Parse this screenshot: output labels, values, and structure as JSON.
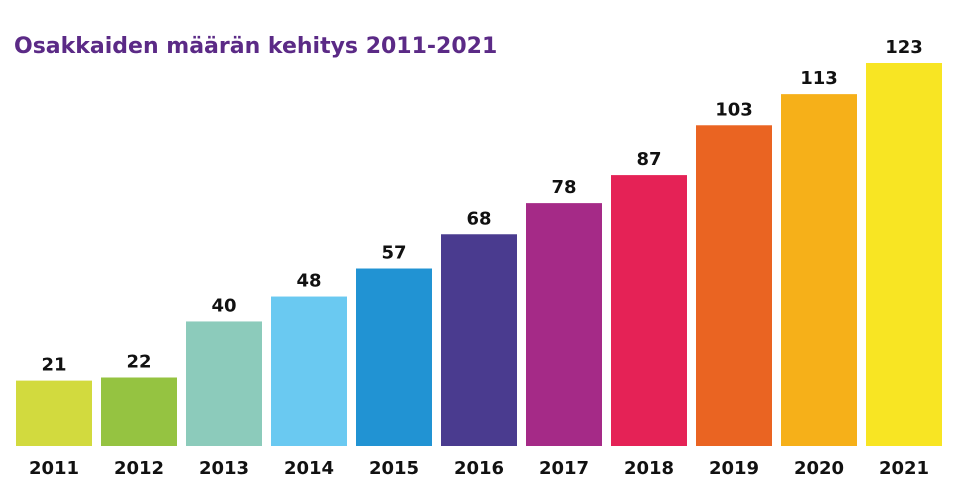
{
  "chart_data": {
    "type": "bar",
    "title": "Osakkaiden määrän kehitys 2011-2021",
    "xlabel": "",
    "ylabel": "",
    "categories": [
      "2011",
      "2012",
      "2013",
      "2014",
      "2015",
      "2016",
      "2017",
      "2018",
      "2019",
      "2020",
      "2021"
    ],
    "values": [
      21,
      22,
      40,
      48,
      57,
      68,
      78,
      87,
      103,
      113,
      123
    ],
    "ylim": [
      0,
      123
    ],
    "grid": false,
    "legend": "none",
    "data_labels": true,
    "colors": [
      "#d2da3e",
      "#95c341",
      "#8ccbbb",
      "#6ac9f1",
      "#2193d3",
      "#4a3b8f",
      "#a52a87",
      "#e52256",
      "#ea6422",
      "#f6b019",
      "#f8e523"
    ],
    "title_color": "#5b2a86",
    "label_color": "#111111"
  }
}
